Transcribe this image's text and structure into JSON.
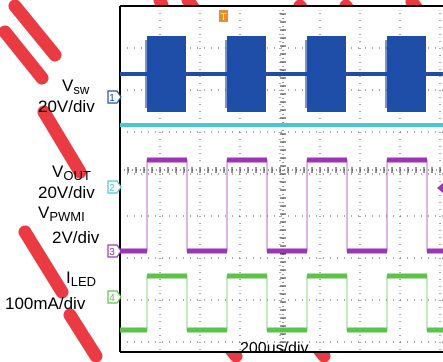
{
  "colors": {
    "ch1": "#1f4ea8",
    "ch2": "#9b35b5",
    "ch3": "#5cc24a",
    "ch4": "#4bc6d6",
    "watermark": "#e8202a",
    "grid_dots": "#555555"
  },
  "labels": {
    "vsw": {
      "main": "V",
      "sub": "sw",
      "scale": "20V/div"
    },
    "vout": {
      "main": "V",
      "sub": "OUT",
      "scale": "20V/div"
    },
    "vpwmi": {
      "main": "V",
      "sub": "PWMI",
      "scale": "2V/div"
    },
    "iled": {
      "main": "I",
      "sub": "LED",
      "scale": "100mA/div"
    },
    "x_scale": "200us/div"
  },
  "channel_markers": [
    "1",
    "2",
    "3",
    "4"
  ],
  "trigger_marker": "T",
  "chart_data": {
    "type": "line",
    "time_per_div_us": 200,
    "pwm_period_us": 400,
    "pwm_high_us": 200,
    "series": [
      {
        "name": "Vsw",
        "scale_per_div": "20V/div",
        "waveform": "switching bursts during PWM high, flat otherwise"
      },
      {
        "name": "VOUT",
        "scale_per_div": "20V/div",
        "waveform": "flat"
      },
      {
        "name": "VPWMI",
        "scale_per_div": "2V/div",
        "waveform": "square wave"
      },
      {
        "name": "ILED",
        "scale_per_div": "100mA/div",
        "waveform": "square wave"
      }
    ]
  }
}
